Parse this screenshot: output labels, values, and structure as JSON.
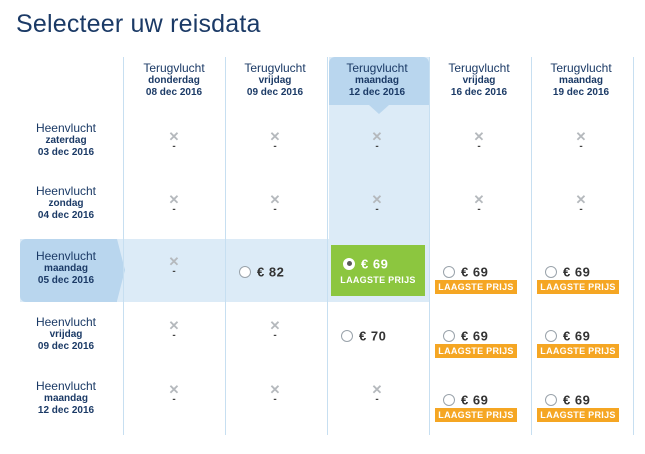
{
  "title": "Selecteer uw reisdata",
  "return_label": "Terugvlucht",
  "outbound_label": "Heenvlucht",
  "lowest_price_label": "LAAGSTE PRIJS",
  "not_available": "✕",
  "not_available_dash": "-",
  "colors": {
    "accent": "#8cc63f",
    "badge": "#f5a623",
    "highlight": "#dcebf7"
  },
  "return_dates": [
    {
      "day": "donderdag",
      "date": "08 dec 2016"
    },
    {
      "day": "vrijdag",
      "date": "09 dec 2016"
    },
    {
      "day": "maandag",
      "date": "12 dec 2016"
    },
    {
      "day": "vrijdag",
      "date": "16 dec 2016"
    },
    {
      "day": "maandag",
      "date": "19 dec 2016"
    }
  ],
  "outbound_dates": [
    {
      "day": "zaterdag",
      "date": "03 dec 2016"
    },
    {
      "day": "zondag",
      "date": "04 dec 2016"
    },
    {
      "day": "maandag",
      "date": "05 dec 2016"
    },
    {
      "day": "vrijdag",
      "date": "09 dec 2016"
    },
    {
      "day": "maandag",
      "date": "12 dec 2016"
    }
  ],
  "selected": {
    "outbound_index": 2,
    "return_index": 2
  },
  "fares": [
    [
      null,
      null,
      null,
      null,
      null
    ],
    [
      null,
      null,
      null,
      null,
      null
    ],
    [
      null,
      {
        "price": "€ 82",
        "lowest": false
      },
      {
        "price": "€ 69",
        "lowest": true
      },
      {
        "price": "€ 69",
        "lowest": true
      },
      {
        "price": "€ 69",
        "lowest": true
      }
    ],
    [
      null,
      null,
      {
        "price": "€ 70",
        "lowest": false
      },
      {
        "price": "€ 69",
        "lowest": true
      },
      {
        "price": "€ 69",
        "lowest": true
      }
    ],
    [
      null,
      null,
      null,
      {
        "price": "€ 69",
        "lowest": true
      },
      {
        "price": "€ 69",
        "lowest": true
      }
    ]
  ]
}
